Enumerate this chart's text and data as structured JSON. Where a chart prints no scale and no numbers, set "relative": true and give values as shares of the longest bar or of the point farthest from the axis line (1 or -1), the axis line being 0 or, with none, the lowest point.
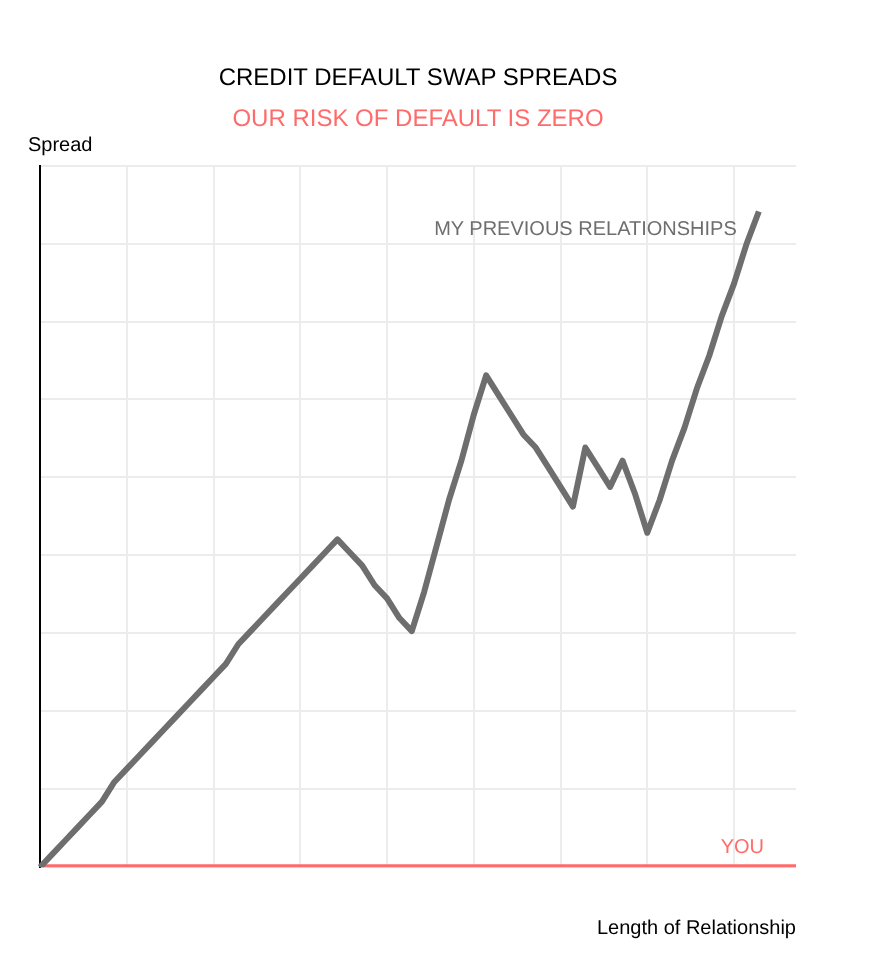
{
  "chart_data": {
    "type": "line",
    "title": "CREDIT DEFAULT SWAP SPREADS",
    "subtitle": "OUR RISK OF DEFAULT IS ZERO",
    "xlabel": "Length of Relationship",
    "ylabel": "Spread",
    "relative": true,
    "grid": true,
    "legend": false,
    "marker": "none",
    "line_style": "solid",
    "categories": [
      null,
      null,
      null,
      null,
      null,
      null,
      null,
      null,
      null,
      null,
      null,
      null,
      null,
      null,
      null,
      null,
      null,
      null,
      null,
      null,
      null,
      null,
      null,
      null,
      null,
      null,
      null,
      null,
      null,
      null,
      null,
      null,
      null,
      null,
      null,
      null,
      null,
      null,
      null,
      null,
      null,
      null,
      null,
      null,
      null,
      null,
      null,
      null,
      null,
      null,
      null,
      null,
      null,
      null,
      null,
      null,
      null,
      null,
      null,
      null,
      null,
      null
    ],
    "series": [
      {
        "name": "MY PREVIOUS RELATIONSHIPS",
        "color": "#6e6e6e",
        "values": [
          0,
          0.02,
          0.04,
          0.06,
          0.08,
          0.1,
          0.13,
          0.15,
          0.17,
          0.19,
          0.21,
          0.23,
          0.25,
          0.27,
          0.29,
          0.31,
          0.34,
          0.36,
          0.38,
          0.4,
          0.42,
          0.44,
          0.46,
          0.48,
          0.5,
          0.48,
          0.46,
          0.43,
          0.41,
          0.38,
          0.36,
          0.42,
          0.49,
          0.56,
          0.62,
          0.69,
          0.75,
          0.72,
          0.69,
          0.66,
          0.64,
          0.61,
          0.58,
          0.55,
          0.64,
          0.61,
          0.58,
          0.62,
          0.57,
          0.51,
          0.56,
          0.62,
          0.67,
          0.73,
          0.78,
          0.84,
          0.89,
          0.95,
          1,
          null,
          null,
          null
        ]
      },
      {
        "name": "YOU",
        "color": "#ff6b6b",
        "values": [
          0,
          0,
          0,
          0,
          0,
          0,
          0,
          0,
          0,
          0,
          0,
          0,
          0,
          0,
          0,
          0,
          0,
          0,
          0,
          0,
          0,
          0,
          0,
          0,
          0,
          0,
          0,
          0,
          0,
          0,
          0,
          0,
          0,
          0,
          0,
          0,
          0,
          0,
          0,
          0,
          0,
          0,
          0,
          0,
          0,
          0,
          0,
          0,
          0,
          0,
          0,
          0,
          0,
          0,
          0,
          0,
          0,
          0,
          0,
          0,
          0,
          0
        ]
      }
    ]
  }
}
